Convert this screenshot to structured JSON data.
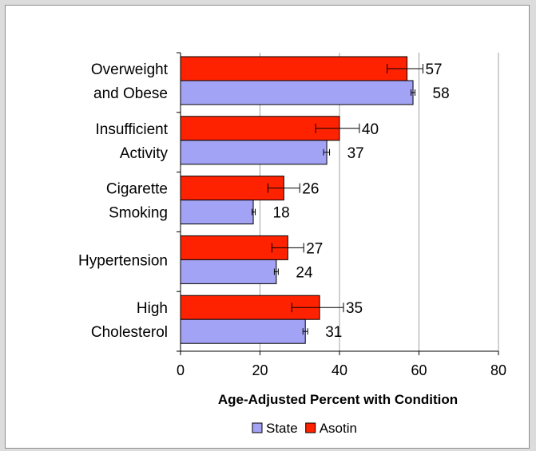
{
  "chart_data": {
    "type": "bar",
    "orientation": "horizontal",
    "categories": [
      [
        "Overweight",
        "and Obese"
      ],
      [
        "Insufficient",
        "Activity"
      ],
      [
        "Cigarette",
        "Smoking"
      ],
      [
        "Hypertension"
      ],
      [
        "High",
        "Cholesterol"
      ]
    ],
    "series": [
      {
        "name": "Asotin",
        "color": "#ff2200",
        "values": [
          57,
          40,
          26,
          27,
          35
        ],
        "error_low": [
          52,
          34,
          22,
          23,
          28
        ],
        "error_high": [
          61,
          45,
          30,
          31,
          41
        ],
        "labels": [
          "57",
          "40",
          "26",
          "27",
          "35"
        ]
      },
      {
        "name": "State",
        "color": "#a3a3f5",
        "values": [
          58.5,
          36.8,
          18.3,
          24.1,
          31.4
        ],
        "error_low": [
          58,
          36,
          18,
          23.6,
          30.8
        ],
        "error_high": [
          59,
          37.5,
          18.8,
          24.6,
          32
        ],
        "labels": [
          "58",
          "37",
          "18",
          "24",
          "31"
        ]
      }
    ],
    "xlabel": "Age-Adjusted Percent with Condition",
    "xlim": [
      0,
      80
    ],
    "xticks": [
      0,
      20,
      40,
      60,
      80
    ],
    "grid": true,
    "legend": {
      "placement": "bottom",
      "order": [
        "State",
        "Asotin"
      ]
    }
  }
}
